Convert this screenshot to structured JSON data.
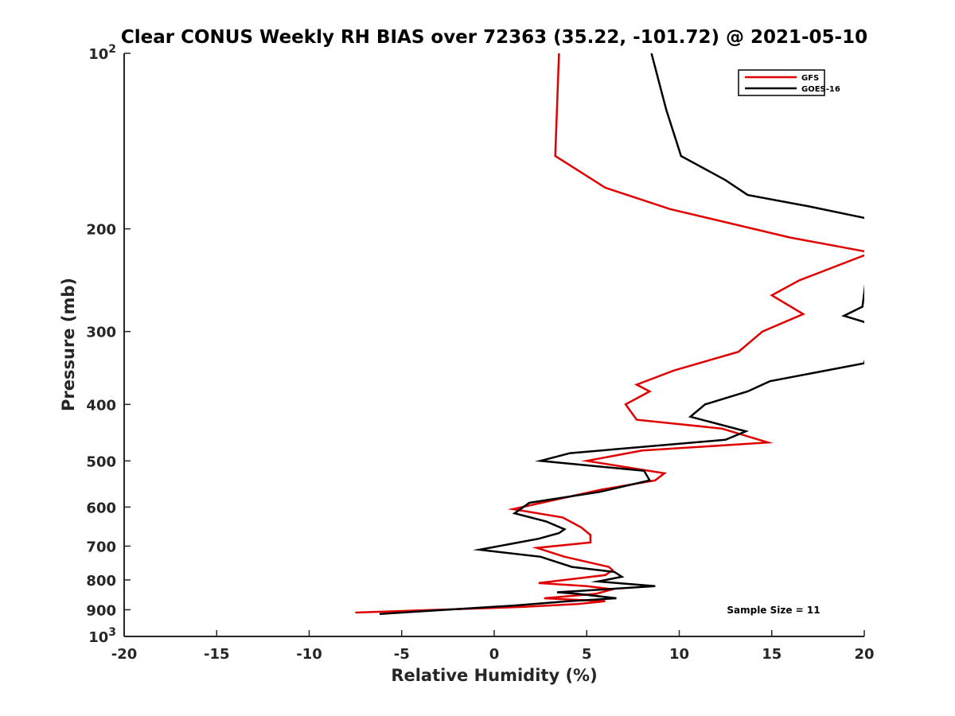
{
  "chart_data": {
    "type": "line",
    "title": "Clear CONUS Weekly RH BIAS over 72363 (35.22, -101.72) @ 2021-05-10",
    "xlabel": "Relative Humidity (%)",
    "ylabel": "Pressure (mb)",
    "xlim": [
      -20,
      20
    ],
    "ylim": [
      100,
      1000
    ],
    "yscale": "log",
    "y_reversed": true,
    "grid": false,
    "legend_position": "top-right",
    "x_ticks": [
      "-20",
      "-15",
      "-10",
      "-5",
      "0",
      "5",
      "10",
      "15",
      "20"
    ],
    "y_ticks": [
      {
        "value": 100,
        "base": "10",
        "exp": "2"
      },
      {
        "value": 200,
        "label": "200"
      },
      {
        "value": 300,
        "label": "300"
      },
      {
        "value": 400,
        "label": "400"
      },
      {
        "value": 500,
        "label": "500"
      },
      {
        "value": 600,
        "label": "600"
      },
      {
        "value": 700,
        "label": "700"
      },
      {
        "value": 800,
        "label": "800"
      },
      {
        "value": 900,
        "label": "900"
      },
      {
        "value": 1000,
        "base": "10",
        "exp": "3"
      }
    ],
    "annotation": "Sample Size = 11",
    "series": [
      {
        "name": "GFS",
        "color": "#e00000",
        "points": [
          [
            3.5,
            100
          ],
          [
            3.3,
            150
          ],
          [
            6.0,
            170
          ],
          [
            9.5,
            185
          ],
          [
            16.0,
            207
          ],
          [
            20.5,
            220
          ],
          [
            20.0,
            222
          ],
          [
            16.5,
            245
          ],
          [
            15.0,
            260
          ],
          [
            16.7,
            280
          ],
          [
            14.5,
            300
          ],
          [
            13.2,
            325
          ],
          [
            9.7,
            350
          ],
          [
            7.7,
            370
          ],
          [
            8.4,
            380
          ],
          [
            7.1,
            400
          ],
          [
            7.7,
            425
          ],
          [
            12.3,
            440
          ],
          [
            14.8,
            465
          ],
          [
            8.0,
            480
          ],
          [
            5.0,
            500
          ],
          [
            9.2,
            525
          ],
          [
            8.7,
            540
          ],
          [
            5.8,
            560
          ],
          [
            1.0,
            605
          ],
          [
            3.7,
            625
          ],
          [
            4.7,
            650
          ],
          [
            5.2,
            670
          ],
          [
            5.2,
            690
          ],
          [
            2.3,
            705
          ],
          [
            3.8,
            730
          ],
          [
            6.2,
            760
          ],
          [
            6.4,
            770
          ],
          [
            6.0,
            785
          ],
          [
            2.4,
            810
          ],
          [
            5.0,
            820
          ],
          [
            6.4,
            830
          ],
          [
            5.5,
            845
          ],
          [
            2.7,
            860
          ],
          [
            6.0,
            870
          ],
          [
            4.5,
            880
          ],
          [
            1.5,
            890
          ],
          [
            -7.5,
            910
          ]
        ]
      },
      {
        "name": "GOES-16",
        "color": "#000000",
        "points": [
          [
            8.5,
            100
          ],
          [
            9.3,
            125
          ],
          [
            10.1,
            150
          ],
          [
            12.5,
            165
          ],
          [
            13.7,
            175
          ],
          [
            17.0,
            183
          ],
          [
            20.5,
            193
          ],
          [
            19.9,
            272
          ],
          [
            18.9,
            282
          ],
          [
            20.5,
            292
          ],
          [
            20.0,
            340
          ],
          [
            14.9,
            365
          ],
          [
            13.7,
            380
          ],
          [
            11.4,
            400
          ],
          [
            10.6,
            420
          ],
          [
            13.6,
            445
          ],
          [
            12.5,
            460
          ],
          [
            4.1,
            485
          ],
          [
            2.5,
            500
          ],
          [
            8.1,
            520
          ],
          [
            8.4,
            540
          ],
          [
            5.7,
            565
          ],
          [
            1.9,
            590
          ],
          [
            1.1,
            615
          ],
          [
            2.8,
            635
          ],
          [
            3.8,
            655
          ],
          [
            3.5,
            665
          ],
          [
            2.4,
            680
          ],
          [
            -0.8,
            710
          ],
          [
            2.5,
            730
          ],
          [
            4.2,
            760
          ],
          [
            6.5,
            775
          ],
          [
            6.9,
            790
          ],
          [
            5.6,
            805
          ],
          [
            8.7,
            820
          ],
          [
            3.4,
            840
          ],
          [
            4.5,
            845
          ],
          [
            6.6,
            860
          ],
          [
            4.0,
            870
          ],
          [
            1.1,
            885
          ],
          [
            -6.2,
            915
          ]
        ]
      }
    ]
  }
}
